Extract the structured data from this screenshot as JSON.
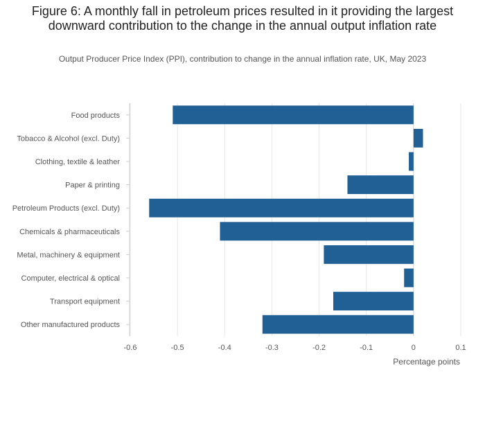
{
  "chart_data": {
    "type": "bar",
    "orientation": "horizontal",
    "title": "Figure 6: A monthly fall in petroleum prices resulted in it providing the largest downward contribution to the change in the annual output inflation rate",
    "subtitle": "Output Producer Price Index (PPI), contribution to change in the annual inflation rate, UK, May 2023",
    "xlabel": "Percentage points",
    "ylabel": "",
    "xlim": [
      -0.6,
      0.1
    ],
    "xticks": [
      -0.6,
      -0.5,
      -0.4,
      -0.3,
      -0.2,
      -0.1,
      0,
      0.1
    ],
    "xtick_labels": [
      "-0.6",
      "-0.5",
      "-0.4",
      "-0.3",
      "-0.2",
      "-0.1",
      "0",
      "0.1"
    ],
    "grid": true,
    "bar_color": "#206095",
    "categories": [
      "Food products",
      "Tobacco & Alcohol (excl. Duty)",
      "Clothing, textile & leather",
      "Paper & printing",
      "Petroleum Products (excl. Duty)",
      "Chemicals & pharmaceuticals",
      "Metal, machinery & equipment",
      "Computer, electrical & optical",
      "Transport equipment",
      "Other manufactured products"
    ],
    "values": [
      -0.51,
      0.02,
      -0.01,
      -0.14,
      -0.56,
      -0.41,
      -0.19,
      -0.02,
      -0.17,
      -0.32
    ]
  }
}
